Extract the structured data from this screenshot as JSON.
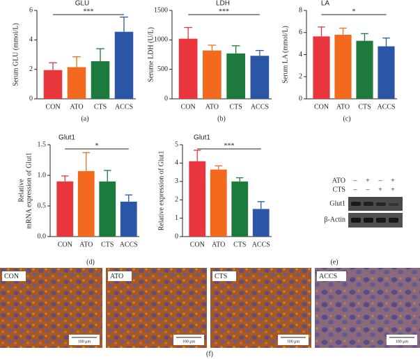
{
  "chart_data": [
    {
      "type": "bar",
      "title": "GLU",
      "y_label": [
        "Serum GLU (mmol/L)"
      ],
      "categories": [
        "CON",
        "ATO",
        "CTS",
        "ACCS"
      ],
      "values": [
        1.95,
        2.15,
        2.55,
        4.55
      ],
      "errors": [
        0.5,
        0.7,
        0.85,
        1.0
      ],
      "colors": [
        "#e8363c",
        "#f36a1e",
        "#1b7a3c",
        "#2b56a6"
      ],
      "ylim": [
        0,
        6
      ],
      "yticks": [
        0,
        2,
        4,
        6
      ],
      "significance": "***",
      "panel_label": "(a)"
    },
    {
      "type": "bar",
      "title": "LDH",
      "y_label": [
        "Serume LDH (U/L)"
      ],
      "categories": [
        "CON",
        "ATO",
        "CTS",
        "ACCS"
      ],
      "values": [
        1020,
        820,
        770,
        730
      ],
      "errors": [
        190,
        90,
        130,
        90
      ],
      "colors": [
        "#e8363c",
        "#f36a1e",
        "#1b7a3c",
        "#2b56a6"
      ],
      "ylim": [
        0,
        1500
      ],
      "yticks": [
        0,
        500,
        1000,
        1500
      ],
      "significance": "***",
      "panel_label": "(b)"
    },
    {
      "type": "bar",
      "title": "LA",
      "y_label": [
        "Serum LA (mmol/L)"
      ],
      "categories": [
        "CON",
        "ATO",
        "CTS",
        "ACCS"
      ],
      "values": [
        5.65,
        5.8,
        5.25,
        4.75
      ],
      "errors": [
        0.85,
        0.6,
        0.65,
        0.75
      ],
      "colors": [
        "#e8363c",
        "#f36a1e",
        "#1b7a3c",
        "#2b56a6"
      ],
      "ylim": [
        0,
        8
      ],
      "yticks": [
        0,
        2,
        4,
        6,
        8
      ],
      "significance": "*",
      "panel_label": "(c)"
    },
    {
      "type": "bar",
      "title": "Glut1",
      "y_label": [
        "Relative",
        "mRNA expression of Glut1"
      ],
      "categories": [
        "CON",
        "ATO",
        "CTS",
        "ACCS"
      ],
      "values": [
        0.9,
        1.07,
        0.9,
        0.57
      ],
      "errors": [
        0.09,
        0.3,
        0.18,
        0.11
      ],
      "colors": [
        "#e8363c",
        "#f36a1e",
        "#1b7a3c",
        "#2b56a6"
      ],
      "ylim": [
        0,
        1.5
      ],
      "yticks": [
        {
          "value": 0,
          "label": "0.0"
        },
        0.5,
        {
          "value": 1,
          "label": "1.0"
        },
        1.5
      ],
      "significance": "*",
      "panel_label": "(d)"
    },
    {
      "type": "bar",
      "title": "Glut1",
      "y_label": [
        "Relative expression of Glut1"
      ],
      "categories": [
        "CON",
        "ATO",
        "CTS",
        "ACCS"
      ],
      "values": [
        4.1,
        3.65,
        3.0,
        1.5
      ],
      "errors": [
        0.6,
        0.2,
        0.2,
        0.4
      ],
      "colors": [
        "#e8363c",
        "#f36a1e",
        "#1b7a3c",
        "#2b56a6"
      ],
      "ylim": [
        0,
        5
      ],
      "yticks": [
        0,
        1,
        2,
        3,
        4,
        5
      ],
      "significance": "***"
    }
  ],
  "blot": {
    "rows": [
      {
        "label": "ATO",
        "signs": [
          "–",
          "+",
          "–",
          "+"
        ]
      },
      {
        "label": "CTS",
        "signs": [
          "–",
          "–",
          "+",
          "+"
        ]
      }
    ],
    "bands": [
      "Glut1",
      "β-Actin"
    ],
    "panel_label": "(e)"
  },
  "micrographs": {
    "panels": [
      "CON",
      "ATO",
      "CTS",
      "ACCS"
    ],
    "scale_bar": "100 μm",
    "panel_label": "(f)"
  }
}
